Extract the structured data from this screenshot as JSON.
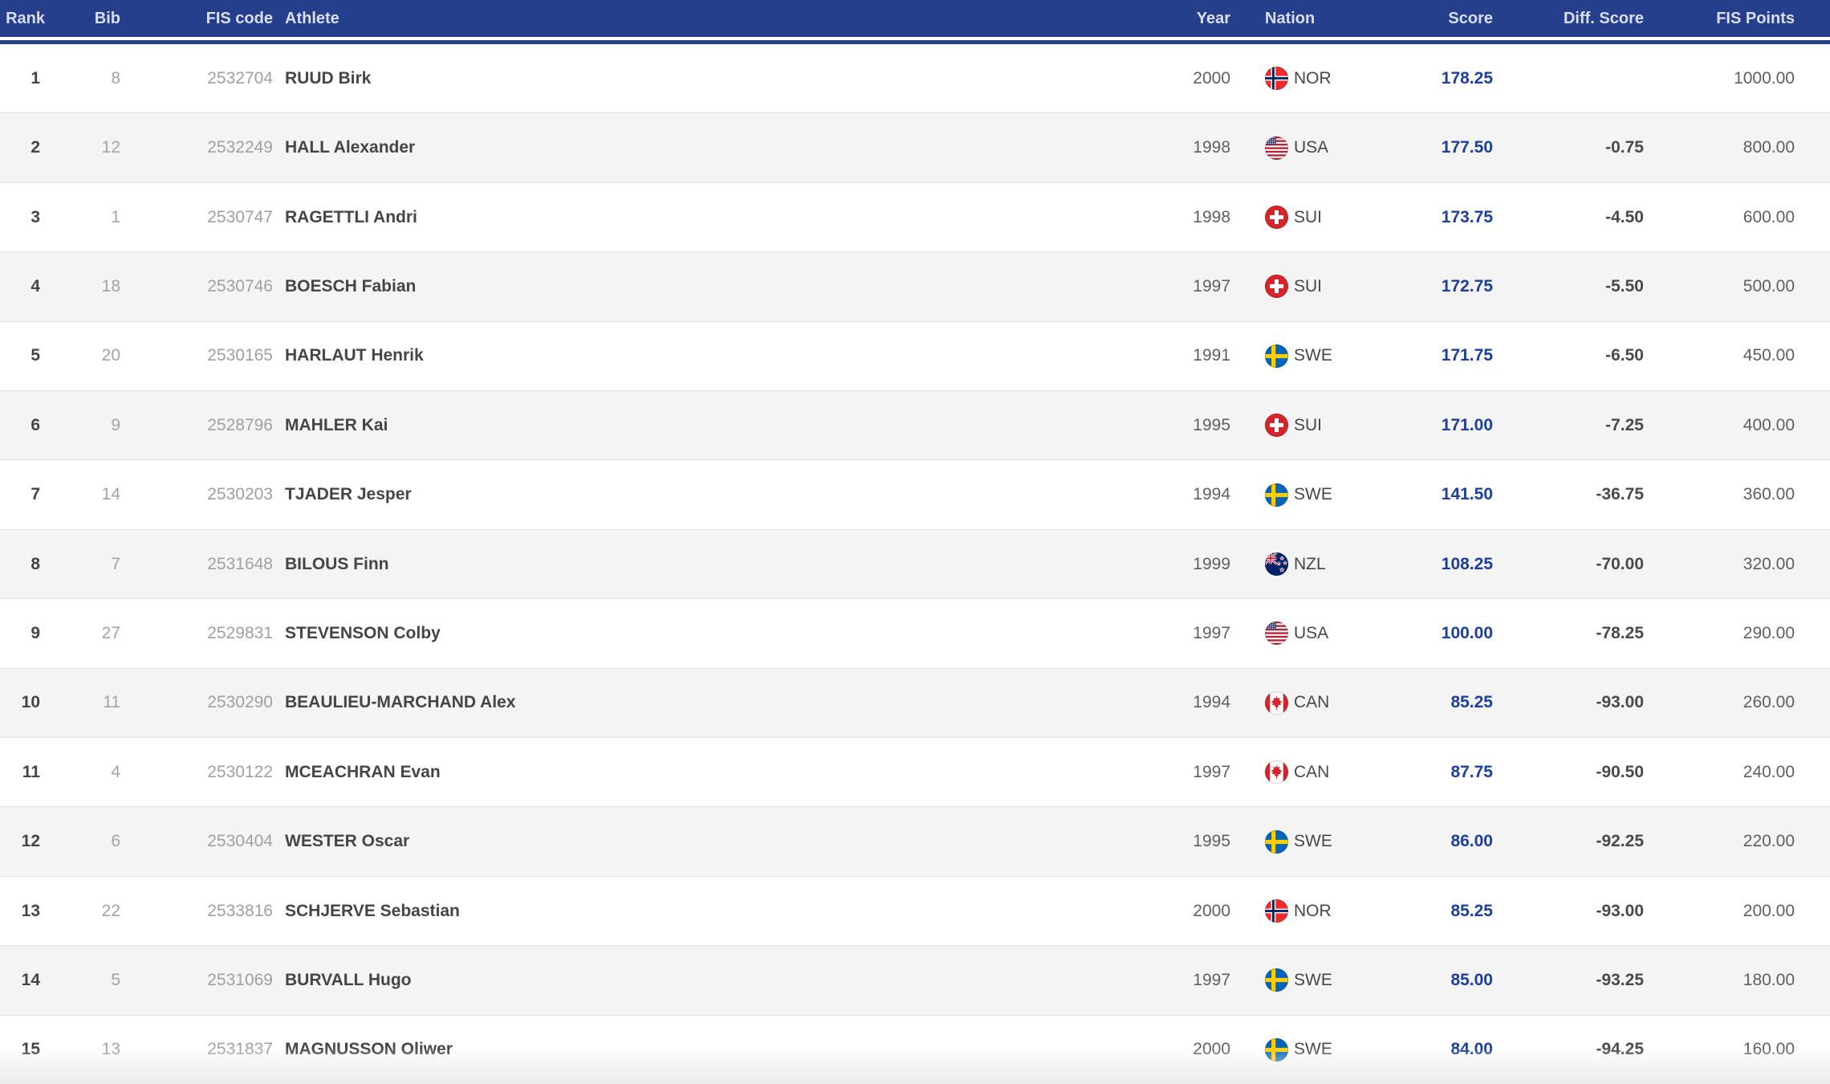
{
  "table": {
    "columns": [
      {
        "key": "rank",
        "label": "Rank"
      },
      {
        "key": "bib",
        "label": "Bib"
      },
      {
        "key": "fis_code",
        "label": "FIS code"
      },
      {
        "key": "athlete",
        "label": "Athlete"
      },
      {
        "key": "year",
        "label": "Year"
      },
      {
        "key": "nation",
        "label": "Nation"
      },
      {
        "key": "score",
        "label": "Score"
      },
      {
        "key": "diff_score",
        "label": "Diff. Score"
      },
      {
        "key": "fis_points",
        "label": "FIS Points"
      }
    ],
    "rows": [
      {
        "rank": "1",
        "bib": "8",
        "fis_code": "2532704",
        "athlete": "RUUD Birk",
        "year": "2000",
        "nation": "NOR",
        "score": "178.25",
        "diff_score": "",
        "fis_points": "1000.00"
      },
      {
        "rank": "2",
        "bib": "12",
        "fis_code": "2532249",
        "athlete": "HALL Alexander",
        "year": "1998",
        "nation": "USA",
        "score": "177.50",
        "diff_score": "-0.75",
        "fis_points": "800.00"
      },
      {
        "rank": "3",
        "bib": "1",
        "fis_code": "2530747",
        "athlete": "RAGETTLI Andri",
        "year": "1998",
        "nation": "SUI",
        "score": "173.75",
        "diff_score": "-4.50",
        "fis_points": "600.00"
      },
      {
        "rank": "4",
        "bib": "18",
        "fis_code": "2530746",
        "athlete": "BOESCH Fabian",
        "year": "1997",
        "nation": "SUI",
        "score": "172.75",
        "diff_score": "-5.50",
        "fis_points": "500.00"
      },
      {
        "rank": "5",
        "bib": "20",
        "fis_code": "2530165",
        "athlete": "HARLAUT Henrik",
        "year": "1991",
        "nation": "SWE",
        "score": "171.75",
        "diff_score": "-6.50",
        "fis_points": "450.00"
      },
      {
        "rank": "6",
        "bib": "9",
        "fis_code": "2528796",
        "athlete": "MAHLER Kai",
        "year": "1995",
        "nation": "SUI",
        "score": "171.00",
        "diff_score": "-7.25",
        "fis_points": "400.00"
      },
      {
        "rank": "7",
        "bib": "14",
        "fis_code": "2530203",
        "athlete": "TJADER Jesper",
        "year": "1994",
        "nation": "SWE",
        "score": "141.50",
        "diff_score": "-36.75",
        "fis_points": "360.00"
      },
      {
        "rank": "8",
        "bib": "7",
        "fis_code": "2531648",
        "athlete": "BILOUS Finn",
        "year": "1999",
        "nation": "NZL",
        "score": "108.25",
        "diff_score": "-70.00",
        "fis_points": "320.00"
      },
      {
        "rank": "9",
        "bib": "27",
        "fis_code": "2529831",
        "athlete": "STEVENSON Colby",
        "year": "1997",
        "nation": "USA",
        "score": "100.00",
        "diff_score": "-78.25",
        "fis_points": "290.00"
      },
      {
        "rank": "10",
        "bib": "11",
        "fis_code": "2530290",
        "athlete": "BEAULIEU-MARCHAND Alex",
        "year": "1994",
        "nation": "CAN",
        "score": "85.25",
        "diff_score": "-93.00",
        "fis_points": "260.00"
      },
      {
        "rank": "11",
        "bib": "4",
        "fis_code": "2530122",
        "athlete": "MCEACHRAN Evan",
        "year": "1997",
        "nation": "CAN",
        "score": "87.75",
        "diff_score": "-90.50",
        "fis_points": "240.00"
      },
      {
        "rank": "12",
        "bib": "6",
        "fis_code": "2530404",
        "athlete": "WESTER Oscar",
        "year": "1995",
        "nation": "SWE",
        "score": "86.00",
        "diff_score": "-92.25",
        "fis_points": "220.00"
      },
      {
        "rank": "13",
        "bib": "22",
        "fis_code": "2533816",
        "athlete": "SCHJERVE Sebastian",
        "year": "2000",
        "nation": "NOR",
        "score": "85.25",
        "diff_score": "-93.00",
        "fis_points": "200.00"
      },
      {
        "rank": "14",
        "bib": "5",
        "fis_code": "2531069",
        "athlete": "BURVALL Hugo",
        "year": "1997",
        "nation": "SWE",
        "score": "85.00",
        "diff_score": "-93.25",
        "fis_points": "180.00"
      },
      {
        "rank": "15",
        "bib": "13",
        "fis_code": "2531837",
        "athlete": "MAGNUSSON Oliwer",
        "year": "2000",
        "nation": "SWE",
        "score": "84.00",
        "diff_score": "-94.25",
        "fis_points": "160.00"
      }
    ]
  },
  "colors": {
    "header_bg": "#263f8c",
    "header_text": "#d9def0",
    "score_text": "#1c3f9e",
    "row_alt_bg": "#f4f4f4",
    "row_border": "#e3e3e3",
    "dark_text": "#454545",
    "muted_text": "#a3a3a3"
  }
}
